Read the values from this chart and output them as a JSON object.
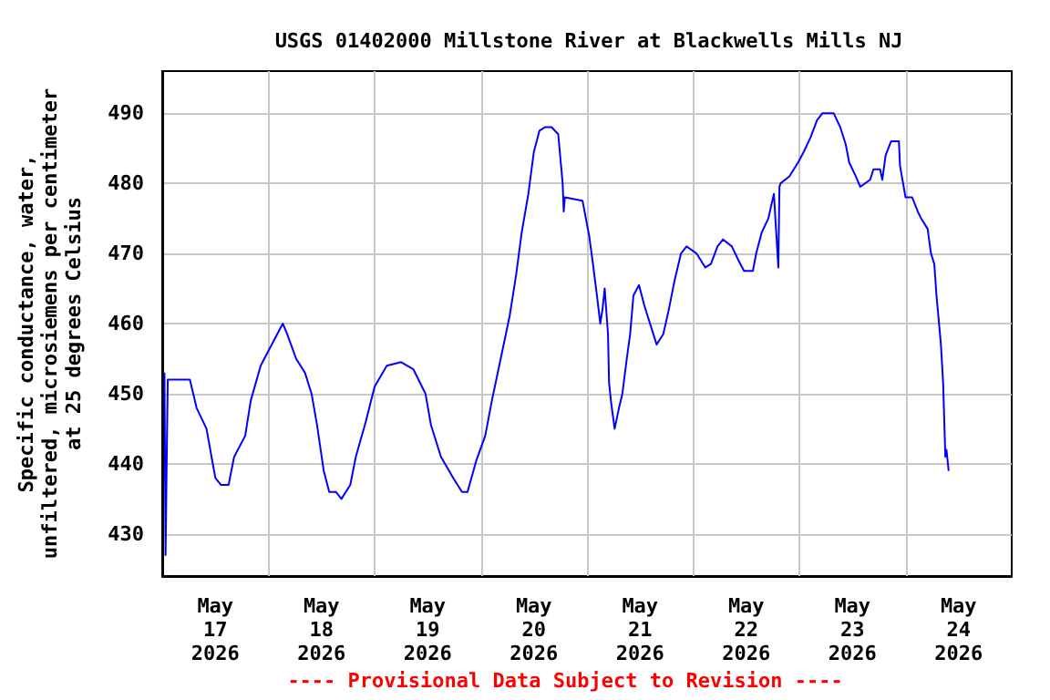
{
  "chart_data": {
    "type": "line",
    "title": "USGS 01402000 Millstone River at Blackwells Mills NJ",
    "ylabel": "Specific conductance, water,\nunfiltered, microsiemens per centimeter\nat 25 degrees Celsius",
    "annotations": [
      "---- Provisional Data Subject to Revision ----"
    ],
    "x": [
      "2026-05-17T00:30",
      "2026-05-17T00:45",
      "2026-05-17T01:00",
      "2026-05-17T01:15",
      "2026-05-17T06:15",
      "2026-05-17T07:45",
      "2026-05-17T10:00",
      "2026-05-17T12:00",
      "2026-05-17T13:15",
      "2026-05-17T15:00",
      "2026-05-17T16:15",
      "2026-05-17T18:45",
      "2026-05-17T20:00",
      "2026-05-17T22:15",
      "2026-05-18T00:45",
      "2026-05-18T03:15",
      "2026-05-18T04:15",
      "2026-05-18T06:15",
      "2026-05-18T08:15",
      "2026-05-18T09:45",
      "2026-05-18T11:00",
      "2026-05-18T12:30",
      "2026-05-18T13:45",
      "2026-05-18T15:15",
      "2026-05-18T16:30",
      "2026-05-18T18:30",
      "2026-05-18T19:45",
      "2026-05-18T22:00",
      "2026-05-19T00:00",
      "2026-05-19T02:45",
      "2026-05-19T06:00",
      "2026-05-19T08:45",
      "2026-05-19T11:30",
      "2026-05-19T12:45",
      "2026-05-19T15:00",
      "2026-05-19T17:45",
      "2026-05-19T19:45",
      "2026-05-19T21:00",
      "2026-05-19T23:00",
      "2026-05-20T01:00",
      "2026-05-20T02:30",
      "2026-05-20T04:30",
      "2026-05-20T06:30",
      "2026-05-20T08:00",
      "2026-05-20T09:15",
      "2026-05-20T10:45",
      "2026-05-20T12:00",
      "2026-05-20T13:15",
      "2026-05-20T14:30",
      "2026-05-20T16:00",
      "2026-05-20T17:30",
      "2026-05-20T18:30",
      "2026-05-20T18:45",
      "2026-05-20T19:00",
      "2026-05-20T23:00",
      "2026-05-20T23:45",
      "2026-05-21T00:30",
      "2026-05-21T01:15",
      "2026-05-21T02:15",
      "2026-05-21T03:00",
      "2026-05-21T03:30",
      "2026-05-21T04:00",
      "2026-05-21T04:45",
      "2026-05-21T05:00",
      "2026-05-21T05:30",
      "2026-05-21T06:15",
      "2026-05-21T07:15",
      "2026-05-21T08:00",
      "2026-05-21T09:00",
      "2026-05-21T09:45",
      "2026-05-21T10:30",
      "2026-05-21T11:45",
      "2026-05-21T13:00",
      "2026-05-21T14:30",
      "2026-05-21T15:45",
      "2026-05-21T17:15",
      "2026-05-21T18:30",
      "2026-05-21T19:45",
      "2026-05-21T21:15",
      "2026-05-21T22:30",
      "2026-05-22T00:45",
      "2026-05-22T02:45",
      "2026-05-22T04:00",
      "2026-05-22T05:30",
      "2026-05-22T06:45",
      "2026-05-22T08:45",
      "2026-05-22T10:15",
      "2026-05-22T11:30",
      "2026-05-22T13:30",
      "2026-05-22T14:15",
      "2026-05-22T15:30",
      "2026-05-22T17:00",
      "2026-05-22T18:15",
      "2026-05-22T19:15",
      "2026-05-22T19:30",
      "2026-05-22T19:45",
      "2026-05-22T21:45",
      "2026-05-22T23:45",
      "2026-05-23T01:00",
      "2026-05-23T02:30",
      "2026-05-23T04:00",
      "2026-05-23T05:15",
      "2026-05-23T07:45",
      "2026-05-23T09:15",
      "2026-05-23T10:30",
      "2026-05-23T11:15",
      "2026-05-23T12:45",
      "2026-05-23T13:45",
      "2026-05-23T16:00",
      "2026-05-23T16:45",
      "2026-05-23T18:15",
      "2026-05-23T18:45",
      "2026-05-23T19:30",
      "2026-05-23T20:45",
      "2026-05-23T22:30",
      "2026-05-23T22:45",
      "2026-05-24T00:00",
      "2026-05-24T01:30",
      "2026-05-24T02:45",
      "2026-05-24T03:30",
      "2026-05-24T05:00",
      "2026-05-24T05:45",
      "2026-05-24T06:30",
      "2026-05-24T07:00",
      "2026-05-24T08:00",
      "2026-05-24T08:30",
      "2026-05-24T09:00",
      "2026-05-24T09:15",
      "2026-05-24T09:45"
    ],
    "series": [
      {
        "color": "#0000ff",
        "values": [
          453,
          427,
          440,
          452,
          452,
          448,
          445,
          438,
          437,
          437,
          441,
          444,
          449,
          454,
          457,
          460,
          458.5,
          455,
          453,
          450,
          445.5,
          439,
          436,
          436,
          435,
          437,
          441,
          446,
          451,
          454,
          454.5,
          453.5,
          450,
          445.5,
          441,
          438,
          436,
          436,
          440.5,
          444,
          449,
          455,
          461,
          467,
          473,
          478.5,
          484.5,
          487.5,
          488,
          488,
          487,
          480,
          476,
          478,
          477.5,
          475,
          472.5,
          469,
          464,
          460,
          462,
          465,
          458.5,
          451.5,
          448.5,
          445,
          448,
          450,
          455,
          458.5,
          464,
          465.5,
          462.5,
          459.5,
          457,
          458.5,
          462,
          466,
          470,
          471,
          470,
          468,
          468.5,
          471,
          472,
          471,
          469,
          467.5,
          467.5,
          470,
          473,
          475,
          478.5,
          468,
          479.5,
          480,
          481,
          483,
          484.5,
          486.5,
          489,
          490,
          490,
          488,
          485.5,
          483,
          481,
          479.5,
          480.5,
          482,
          482,
          480.5,
          484,
          486,
          486,
          482.5,
          478,
          478,
          476,
          475,
          473.5,
          470,
          468.5,
          464,
          457,
          451.5,
          441,
          442,
          439
        ]
      }
    ],
    "xlim": [
      "2026-05-17T00:00",
      "2026-05-25T00:00"
    ],
    "xticks": [
      {
        "value": "2026-05-17T12:00",
        "label": "May\n17\n2026"
      },
      {
        "value": "2026-05-18T00:00",
        "label": null
      },
      {
        "value": "2026-05-18T12:00",
        "label": "May\n18\n2026"
      },
      {
        "value": "2026-05-19T00:00",
        "label": null
      },
      {
        "value": "2026-05-19T12:00",
        "label": "May\n19\n2026"
      },
      {
        "value": "2026-05-20T00:00",
        "label": null
      },
      {
        "value": "2026-05-20T12:00",
        "label": "May\n20\n2026"
      },
      {
        "value": "2026-05-21T00:00",
        "label": null
      },
      {
        "value": "2026-05-21T12:00",
        "label": "May\n21\n2026"
      },
      {
        "value": "2026-05-22T00:00",
        "label": null
      },
      {
        "value": "2026-05-22T12:00",
        "label": "May\n22\n2026"
      },
      {
        "value": "2026-05-23T00:00",
        "label": null
      },
      {
        "value": "2026-05-23T12:00",
        "label": "May\n23\n2026"
      },
      {
        "value": "2026-05-24T00:00",
        "label": null
      },
      {
        "value": "2026-05-24T12:00",
        "label": "May\n24\n2026"
      }
    ],
    "ylim": [
      424,
      496
    ],
    "yticks": [
      430,
      440,
      450,
      460,
      470,
      480,
      490
    ],
    "grid": true,
    "marker": "none",
    "line_style": "solid"
  }
}
